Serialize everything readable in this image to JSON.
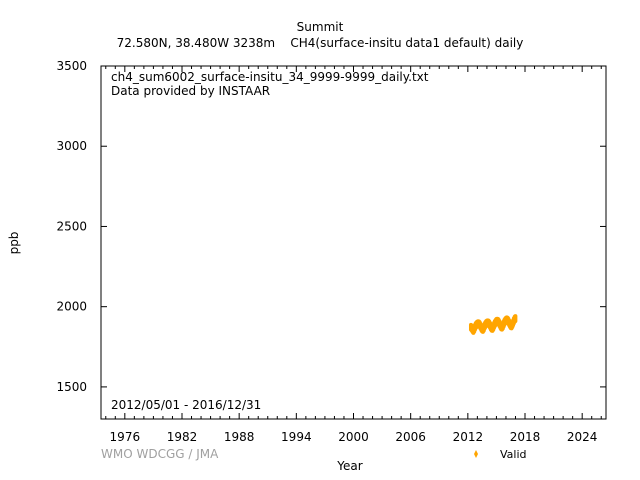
{
  "header": {
    "title": "Summit",
    "subtitle": "72.580N, 38.480W 3238m    CH4(surface-insitu data1 default) daily"
  },
  "annotations": {
    "filename": "ch4_sum6002_surface-insitu_34_9999-9999_daily.txt",
    "provider": "Data provided by INSTAAR",
    "period": "2012/05/01 - 2016/12/31",
    "credit": "WMO WDCGG / JMA"
  },
  "legend": {
    "label": "Valid",
    "color": "#ffa500"
  },
  "chart_data": {
    "type": "scatter",
    "title": "Summit",
    "xlabel": "Year",
    "ylabel": "ppb",
    "xlim": [
      1973.5,
      2026.5
    ],
    "ylim": [
      1300,
      3500
    ],
    "xticks": [
      1976,
      1982,
      1988,
      1994,
      2000,
      2006,
      2012,
      2018,
      2024
    ],
    "yticks": [
      1500,
      2000,
      2500,
      3000,
      3500
    ],
    "grid": false,
    "legend_position": "bottom-right",
    "series": [
      {
        "name": "Valid",
        "color": "#ffa500",
        "x": [
          2012.33,
          2012.42,
          2012.5,
          2012.58,
          2012.67,
          2012.75,
          2012.83,
          2012.92,
          2013.0,
          2013.08,
          2013.17,
          2013.25,
          2013.33,
          2013.42,
          2013.5,
          2013.58,
          2013.67,
          2013.75,
          2013.83,
          2013.92,
          2014.0,
          2014.08,
          2014.17,
          2014.25,
          2014.33,
          2014.42,
          2014.5,
          2014.58,
          2014.67,
          2014.75,
          2014.83,
          2014.92,
          2015.0,
          2015.08,
          2015.17,
          2015.25,
          2015.33,
          2015.42,
          2015.5,
          2015.58,
          2015.67,
          2015.75,
          2015.83,
          2015.92,
          2016.0,
          2016.08,
          2016.17,
          2016.25,
          2016.33,
          2016.42,
          2016.5,
          2016.58,
          2016.67,
          2016.75,
          2016.83,
          2016.92,
          2016.99
        ],
        "y": [
          1872,
          1866,
          1858,
          1852,
          1860,
          1872,
          1882,
          1888,
          1892,
          1894,
          1893,
          1887,
          1878,
          1868,
          1861,
          1858,
          1866,
          1878,
          1887,
          1894,
          1898,
          1900,
          1898,
          1892,
          1883,
          1873,
          1866,
          1864,
          1872,
          1884,
          1894,
          1902,
          1908,
          1910,
          1908,
          1902,
          1893,
          1882,
          1874,
          1872,
          1879,
          1891,
          1902,
          1910,
          1915,
          1918,
          1916,
          1910,
          1900,
          1890,
          1882,
          1880,
          1888,
          1900,
          1912,
          1922,
          1926
        ],
        "spread": 30
      }
    ]
  }
}
